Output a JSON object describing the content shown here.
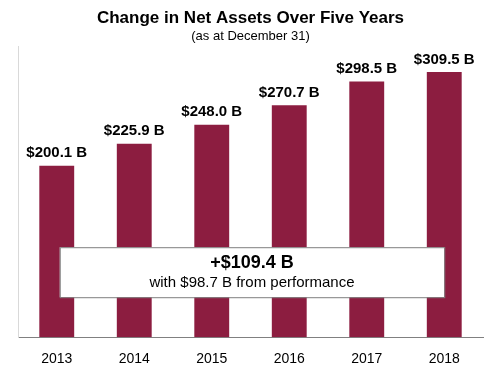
{
  "chart_data": {
    "type": "bar",
    "title": "Change in Net Assets Over Five Years",
    "subtitle": "(as at December 31)",
    "categories": [
      "2013",
      "2014",
      "2015",
      "2016",
      "2017",
      "2018"
    ],
    "values": [
      200.1,
      225.9,
      248.0,
      270.7,
      298.5,
      309.5
    ],
    "value_labels": [
      "$200.1 B",
      "$225.9 B",
      "$248.0 B",
      "$270.7 B",
      "$298.5 B",
      "$309.5 B"
    ],
    "color": "#8c1d40",
    "ylim": [
      0,
      340
    ],
    "grid": false,
    "data_labels": true,
    "tick_labels": "x",
    "annotations": [
      "+$109.4 B",
      "with $98.7 B from performance"
    ]
  }
}
